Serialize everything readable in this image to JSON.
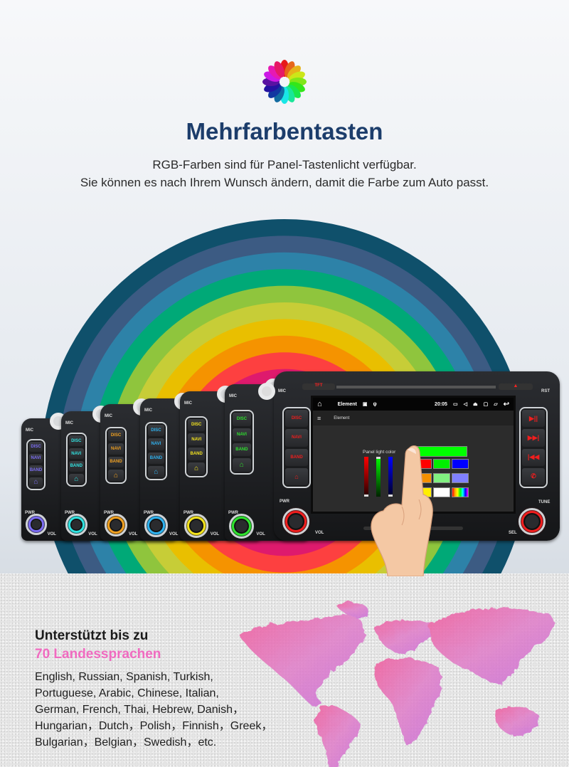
{
  "header": {
    "title": "Mehrfarbentasten",
    "subtitle_lines": [
      "RGB-Farben sind für Panel-Tastenlicht verfügbar.",
      "Sie können es nach Ihrem Wunsch ändern, damit die Farbe zum Auto passt."
    ]
  },
  "rainbow_colors": [
    "#0f506b",
    "#3c5b83",
    "#2d82a8",
    "#00a977",
    "#8fc53d",
    "#c7cd37",
    "#e9bf00",
    "#f59300",
    "#fd4040",
    "#de1a6d"
  ],
  "logo": {
    "icon": "color-wheel-icon"
  },
  "units": {
    "labels": {
      "mic": "MIC",
      "pwr": "PWR",
      "vol": "VOL",
      "disc": "DISC",
      "navi": "NAVI",
      "band": "BAND",
      "home_icon": "home-icon"
    },
    "light_colors": [
      "#7b6cf2",
      "#30e2e0",
      "#f0a020",
      "#2eb2f0",
      "#f2e21e",
      "#2fe22f"
    ]
  },
  "main_unit": {
    "light_color": "#f01e1e",
    "tft": "TFT",
    "mic": "MIC",
    "rst": "RST",
    "pwr": "PWR",
    "vol": "VOL",
    "tune": "TUNE",
    "sel": "SEL",
    "left_buttons": [
      "DISC",
      "NAVI",
      "BAND",
      "⌂"
    ],
    "right_buttons": [
      "▶||",
      "▶▶|",
      "|◀◀",
      "✆"
    ],
    "screen": {
      "status_title": "Element",
      "time": "20:05",
      "app_title": "Element",
      "panel_label": "Panel light color",
      "sliders": {
        "red": 0,
        "green": 1,
        "blue": 0
      },
      "selected_color": "#00ff00",
      "swatches": [
        "#ff0000",
        "#00ee00",
        "#0000ff",
        "#f59000",
        "#80f080",
        "#8080ff",
        "#ffee00",
        "#ffffff",
        "rainbow"
      ]
    }
  },
  "languages": {
    "heading": "Unterstützt bis zu",
    "highlight": "70 Landessprachen",
    "highlight_color": "#f06bc0",
    "lines": [
      "English, Russian, Spanish, Turkish,",
      "Portuguese, Arabic, Chinese, Italian,",
      "German, French, Thai, Hebrew, Danish，",
      "Hungarian，Dutch，Polish，Finnish，Greek，",
      "Bulgarian，Belgian，Swedish，etc."
    ]
  }
}
